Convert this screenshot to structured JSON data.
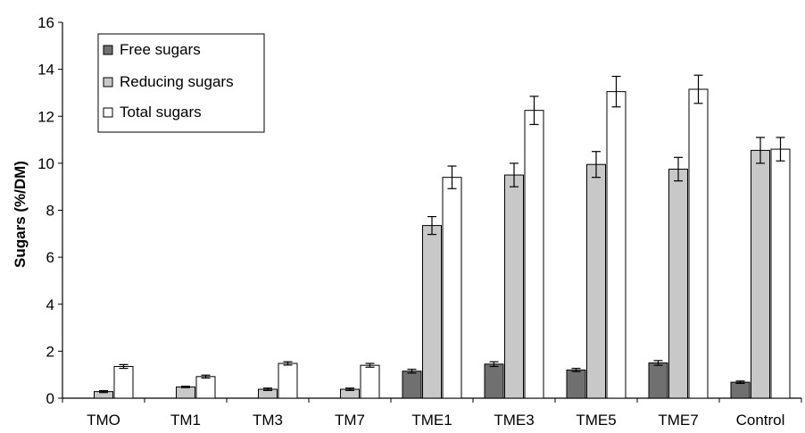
{
  "chart_data": {
    "type": "bar",
    "title": "",
    "xlabel": "",
    "ylabel": "Sugars (%/DM)",
    "ylim": [
      0,
      16
    ],
    "yticks": [
      "0",
      "2",
      "4",
      "6",
      "8",
      "10",
      "12",
      "14",
      "16"
    ],
    "grid": false,
    "legend_position": "top-left",
    "categories": [
      "TMO",
      "TM1",
      "TM3",
      "TM7",
      "TME1",
      "TME3",
      "TME5",
      "TME7",
      "Control"
    ],
    "series": [
      {
        "name": "Free sugars",
        "color": "#707070",
        "values": [
          0,
          0,
          0,
          0,
          1.15,
          1.45,
          1.2,
          1.5,
          0.68
        ],
        "errors": [
          0,
          0,
          0,
          0,
          0.08,
          0.1,
          0.07,
          0.1,
          0.05
        ]
      },
      {
        "name": "Reducing sugars",
        "color": "#c8c8c8",
        "values": [
          0.28,
          0.48,
          0.38,
          0.38,
          7.35,
          9.5,
          9.95,
          9.75,
          10.55
        ],
        "errors": [
          0.04,
          0.03,
          0.05,
          0.05,
          0.38,
          0.5,
          0.55,
          0.5,
          0.55
        ]
      },
      {
        "name": "Total sugars",
        "color": "#ffffff",
        "values": [
          1.35,
          0.92,
          1.48,
          1.4,
          9.4,
          12.25,
          13.05,
          13.15,
          10.6
        ],
        "errors": [
          0.08,
          0.06,
          0.07,
          0.08,
          0.48,
          0.6,
          0.65,
          0.6,
          0.5
        ]
      }
    ]
  }
}
